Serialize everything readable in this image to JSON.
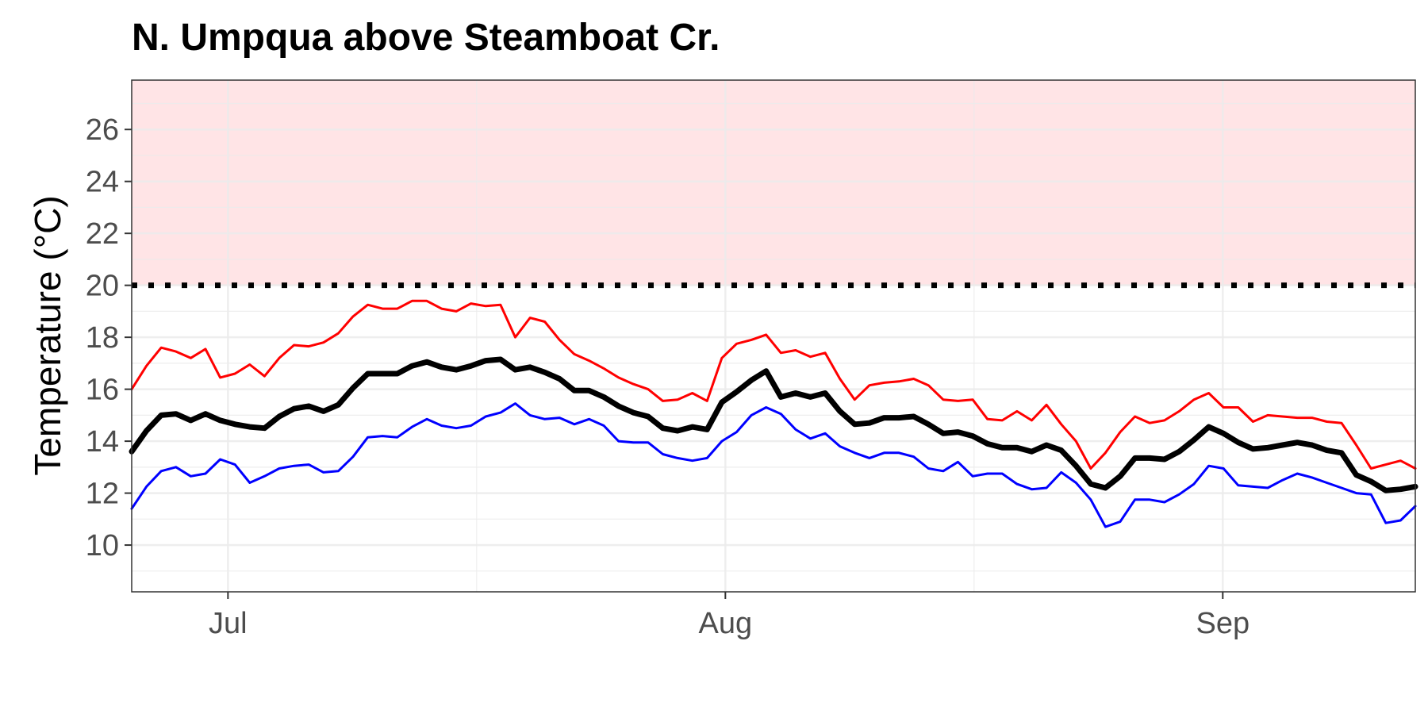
{
  "chart_data": {
    "type": "line",
    "title": "N. Umpqua above Steamboat Cr.",
    "xlabel": "",
    "ylabel": "Temperature (°C)",
    "x_start_date": "2023-06-25",
    "x_end_date": "2023-09-13",
    "x_ticks": [
      {
        "date": "2023-07-01",
        "label": "Jul"
      },
      {
        "date": "2023-08-01",
        "label": "Aug"
      },
      {
        "date": "2023-09-01",
        "label": "Sep"
      }
    ],
    "y_ticks": [
      10,
      12,
      14,
      16,
      18,
      20,
      22,
      24,
      26
    ],
    "ylim": [
      8.2,
      27.9
    ],
    "grid": true,
    "threshold": {
      "value": 20,
      "style": "dotted",
      "color": "#000000"
    },
    "shaded_region": {
      "from": 20,
      "to": 27.9,
      "color": "#ffe4e6"
    },
    "series": [
      {
        "color": "#ff0000",
        "stroke": 3,
        "values": [
          16.0,
          16.9,
          17.6,
          17.45,
          17.2,
          17.55,
          16.45,
          16.6,
          16.95,
          16.5,
          17.2,
          17.7,
          17.65,
          17.8,
          18.15,
          18.8,
          19.25,
          19.1,
          19.1,
          19.4,
          19.4,
          19.1,
          19.0,
          19.3,
          19.2,
          19.25,
          18.0,
          18.75,
          18.6,
          17.9,
          17.35,
          17.1,
          16.8,
          16.45,
          16.2,
          16.0,
          15.55,
          15.6,
          15.85,
          15.55,
          17.2,
          17.75,
          17.9,
          18.1,
          17.4,
          17.5,
          17.25,
          17.4,
          16.4,
          15.6,
          16.15,
          16.25,
          16.3,
          16.4,
          16.15,
          15.6,
          15.55,
          15.6,
          14.85,
          14.8,
          15.15,
          14.8,
          15.4,
          14.65,
          14.0,
          12.95,
          13.55,
          14.35,
          14.95,
          14.7,
          14.8,
          15.15,
          15.6,
          15.85,
          15.3,
          15.3,
          14.75,
          15.0,
          14.95,
          14.9,
          14.9,
          14.75,
          14.7,
          13.85,
          12.95,
          13.1,
          13.25,
          12.95
        ]
      },
      {
        "color": "#000000",
        "stroke": 7,
        "values": [
          13.6,
          14.4,
          15.0,
          15.05,
          14.8,
          15.05,
          14.8,
          14.65,
          14.55,
          14.5,
          14.95,
          15.25,
          15.35,
          15.15,
          15.4,
          16.05,
          16.6,
          16.6,
          16.6,
          16.9,
          17.05,
          16.85,
          16.75,
          16.9,
          17.1,
          17.15,
          16.75,
          16.85,
          16.65,
          16.4,
          15.95,
          15.95,
          15.7,
          15.35,
          15.1,
          14.95,
          14.5,
          14.4,
          14.55,
          14.45,
          15.5,
          15.9,
          16.35,
          16.7,
          15.7,
          15.85,
          15.7,
          15.85,
          15.15,
          14.65,
          14.7,
          14.9,
          14.9,
          14.95,
          14.65,
          14.3,
          14.35,
          14.2,
          13.9,
          13.75,
          13.75,
          13.6,
          13.85,
          13.65,
          13.05,
          12.35,
          12.2,
          12.65,
          13.35,
          13.35,
          13.3,
          13.6,
          14.05,
          14.55,
          14.3,
          13.95,
          13.7,
          13.75,
          13.85,
          13.95,
          13.85,
          13.65,
          13.55,
          12.7,
          12.45,
          12.1,
          12.15,
          12.25
        ]
      },
      {
        "color": "#0000ff",
        "stroke": 3,
        "values": [
          11.4,
          12.25,
          12.85,
          13.0,
          12.65,
          12.75,
          13.3,
          13.1,
          12.4,
          12.65,
          12.95,
          13.05,
          13.1,
          12.8,
          12.85,
          13.4,
          14.15,
          14.2,
          14.15,
          14.55,
          14.85,
          14.6,
          14.5,
          14.6,
          14.95,
          15.1,
          15.45,
          15.0,
          14.85,
          14.9,
          14.65,
          14.85,
          14.6,
          14.0,
          13.95,
          13.95,
          13.5,
          13.35,
          13.25,
          13.35,
          14.0,
          14.35,
          15.0,
          15.3,
          15.05,
          14.45,
          14.1,
          14.3,
          13.8,
          13.55,
          13.35,
          13.55,
          13.55,
          13.4,
          12.95,
          12.85,
          13.2,
          12.65,
          12.75,
          12.75,
          12.35,
          12.15,
          12.2,
          12.8,
          12.4,
          11.75,
          10.7,
          10.9,
          11.75,
          11.75,
          11.65,
          11.95,
          12.35,
          13.05,
          12.95,
          12.3,
          12.25,
          12.2,
          12.5,
          12.75,
          12.6,
          12.4,
          12.2,
          12.0,
          11.95,
          10.85,
          10.95,
          11.5
        ]
      }
    ]
  }
}
